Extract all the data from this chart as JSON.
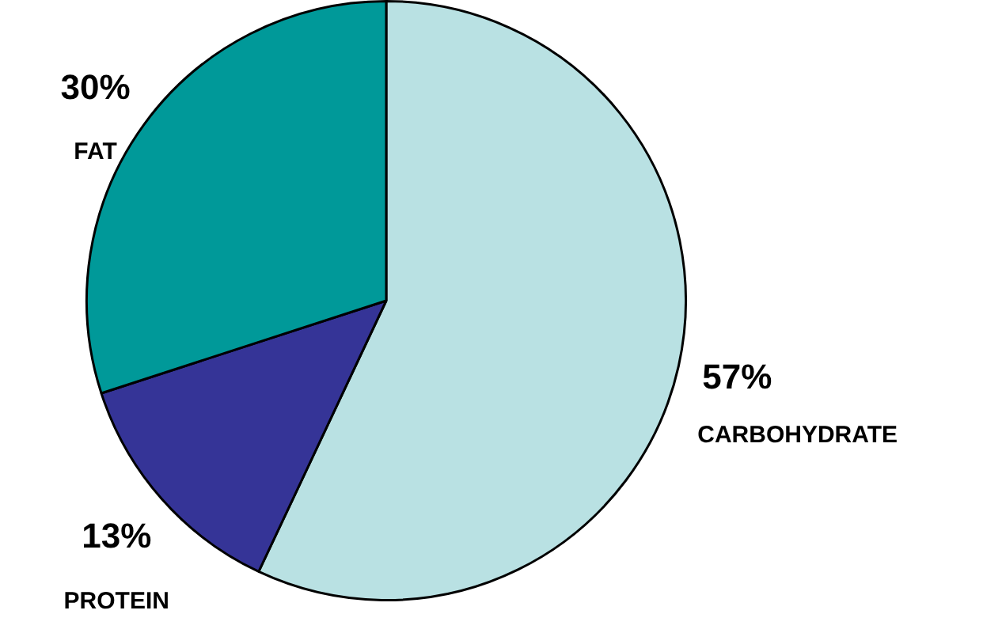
{
  "chart_data": {
    "type": "pie",
    "categories": [
      "CARBOHYDRATE",
      "PROTEIN",
      "FAT"
    ],
    "values": [
      57,
      13,
      30
    ],
    "colors": [
      "#b9e1e3",
      "#353497",
      "#009999"
    ],
    "value_labels": [
      "57%",
      "13%",
      "30%"
    ],
    "legend": false
  }
}
